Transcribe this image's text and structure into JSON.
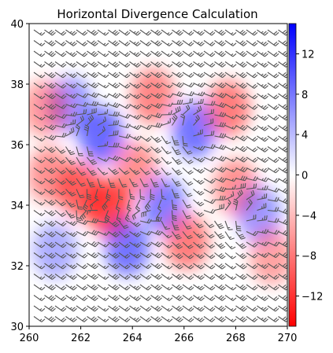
{
  "chart_data": {
    "type": "heatmap",
    "title": "Horizontal Divergence Calculation",
    "xlabel": "",
    "ylabel": "",
    "xlim": [
      260,
      270
    ],
    "ylim": [
      30,
      40
    ],
    "x_ticks": [
      "260",
      "262",
      "264",
      "266",
      "268",
      "270"
    ],
    "y_ticks": [
      "30",
      "32",
      "34",
      "36",
      "38",
      "40"
    ],
    "colorbar": {
      "range": [
        -15,
        15
      ],
      "ticks": [
        "12",
        "8",
        "4",
        "0",
        "−4",
        "−8",
        "−12"
      ],
      "tick_values": [
        12,
        8,
        4,
        0,
        -4,
        -8,
        -12
      ],
      "colormap": "bwr_r",
      "low_color": "#ff0000",
      "mid_color": "#ffffff",
      "high_color": "#0000ff"
    },
    "grid": false,
    "field_features": [
      {
        "x": 262.8,
        "y": 36.3,
        "value": 9
      },
      {
        "x": 261.6,
        "y": 37.3,
        "value": 5
      },
      {
        "x": 263.1,
        "y": 33.9,
        "value": -13
      },
      {
        "x": 262.0,
        "y": 34.5,
        "value": -10
      },
      {
        "x": 264.8,
        "y": 37.6,
        "value": -6
      },
      {
        "x": 266.4,
        "y": 36.5,
        "value": 8
      },
      {
        "x": 267.7,
        "y": 37.2,
        "value": -7
      },
      {
        "x": 265.2,
        "y": 34.0,
        "value": 7
      },
      {
        "x": 263.8,
        "y": 32.6,
        "value": 8
      },
      {
        "x": 266.1,
        "y": 32.8,
        "value": -7
      },
      {
        "x": 268.0,
        "y": 34.6,
        "value": -5
      },
      {
        "x": 268.9,
        "y": 33.7,
        "value": 4
      },
      {
        "x": 260.8,
        "y": 35.0,
        "value": -5
      },
      {
        "x": 264.1,
        "y": 35.2,
        "value": -5
      },
      {
        "x": 261.0,
        "y": 32.5,
        "value": 2
      },
      {
        "x": 269.4,
        "y": 32.3,
        "value": -3
      },
      {
        "x": 260.6,
        "y": 37.2,
        "value": -4
      }
    ],
    "wind_barbs": "gridded wind barbs over the field",
    "colors": {
      "barb": "#555555",
      "axis": "#000000"
    }
  }
}
